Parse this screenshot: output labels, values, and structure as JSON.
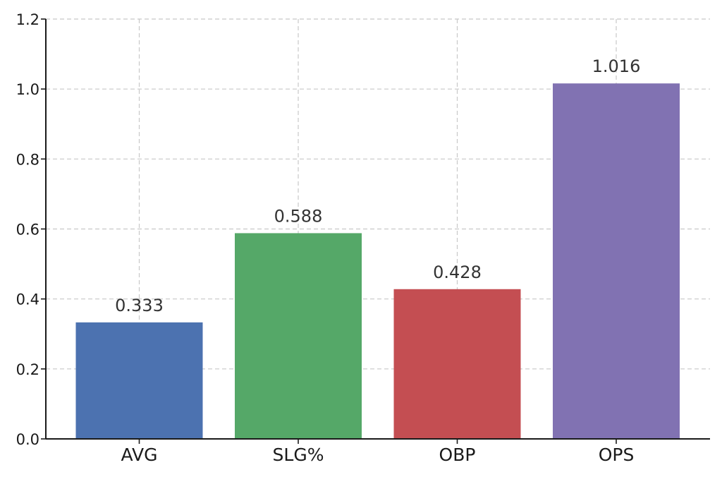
{
  "chart_data": {
    "type": "bar",
    "title": "",
    "xlabel": "",
    "ylabel": "",
    "categories": [
      "AVG",
      "SLG%",
      "OBP",
      "OPS"
    ],
    "values": [
      0.333,
      0.588,
      0.428,
      1.016
    ],
    "value_labels": [
      "0.333",
      "0.588",
      "0.428",
      "1.016"
    ],
    "colors": [
      "#4c72b0",
      "#55a868",
      "#c44e52",
      "#8172b2"
    ],
    "ylim": [
      0,
      1.2
    ],
    "yticks": [
      0.0,
      0.2,
      0.4,
      0.6,
      0.8,
      1.0,
      1.2
    ],
    "ytick_labels": [
      "0.0",
      "0.2",
      "0.4",
      "0.6",
      "0.8",
      "1.0",
      "1.2"
    ],
    "grid": true,
    "legend": false
  }
}
